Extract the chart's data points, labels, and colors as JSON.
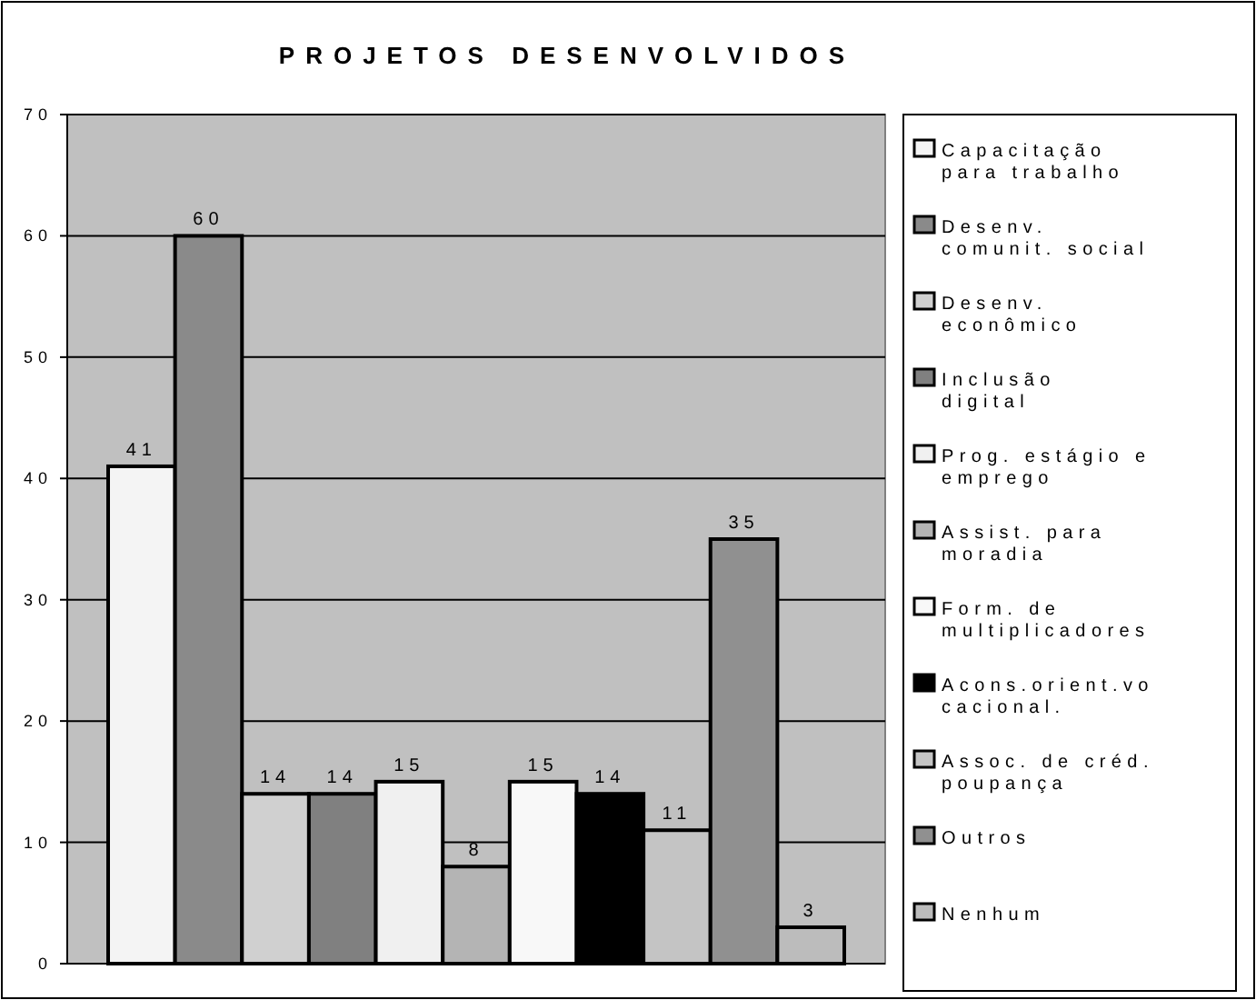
{
  "chart_data": {
    "type": "bar",
    "title": "PROJETOS DESENVOLVIDOS",
    "categories": [
      null
    ],
    "series": [
      {
        "name": "Capacitação para trabalho",
        "color": "#f4f4f4",
        "values": [
          41
        ]
      },
      {
        "name": "Desenv. comunit. social",
        "color": "#8a8a8a",
        "values": [
          60
        ]
      },
      {
        "name": "Desenv. econômico",
        "color": "#d0d0d0",
        "values": [
          14
        ]
      },
      {
        "name": "Inclusão digital",
        "color": "#808080",
        "values": [
          14
        ]
      },
      {
        "name": "Prog. estágio e emprego",
        "color": "#f0f0f0",
        "values": [
          15
        ]
      },
      {
        "name": "Assist. para moradia",
        "color": "#b4b4b4",
        "values": [
          8
        ]
      },
      {
        "name": "Form. de multiplicadores",
        "color": "#f8f8f8",
        "values": [
          15
        ]
      },
      {
        "name": "Acons.orient.vocacional.",
        "color": "#000000",
        "values": [
          14
        ]
      },
      {
        "name": "Assoc. de créd. poupança",
        "color": "#c4c4c4",
        "values": [
          11
        ]
      },
      {
        "name": "Outros",
        "color": "#909090",
        "values": [
          35
        ]
      },
      {
        "name": "Nenhum",
        "color": "#bcbcbc",
        "values": [
          3
        ]
      }
    ],
    "ylim": [
      0,
      70
    ],
    "yticks": [
      0,
      10,
      20,
      30,
      40,
      50,
      60,
      70
    ],
    "grid": "y",
    "legend": "right",
    "data_labels": true
  }
}
